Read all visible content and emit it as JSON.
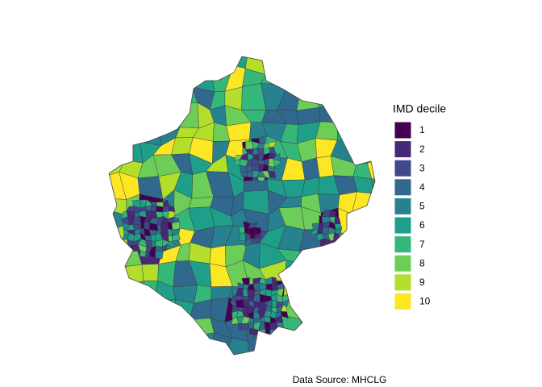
{
  "legend": {
    "title": "IMD decile",
    "items": [
      {
        "label": 1,
        "color": "#440154"
      },
      {
        "label": 2,
        "color": "#482878"
      },
      {
        "label": 3,
        "color": "#3e4a89"
      },
      {
        "label": 4,
        "color": "#31688e"
      },
      {
        "label": 5,
        "color": "#26828e"
      },
      {
        "label": 6,
        "color": "#1f9e89"
      },
      {
        "label": 7,
        "color": "#35b779"
      },
      {
        "label": 8,
        "color": "#6dcd59"
      },
      {
        "label": 9,
        "color": "#b4de2c"
      },
      {
        "label": 10,
        "color": "#fde725"
      }
    ]
  },
  "caption": "Data Source: MHCLG"
}
